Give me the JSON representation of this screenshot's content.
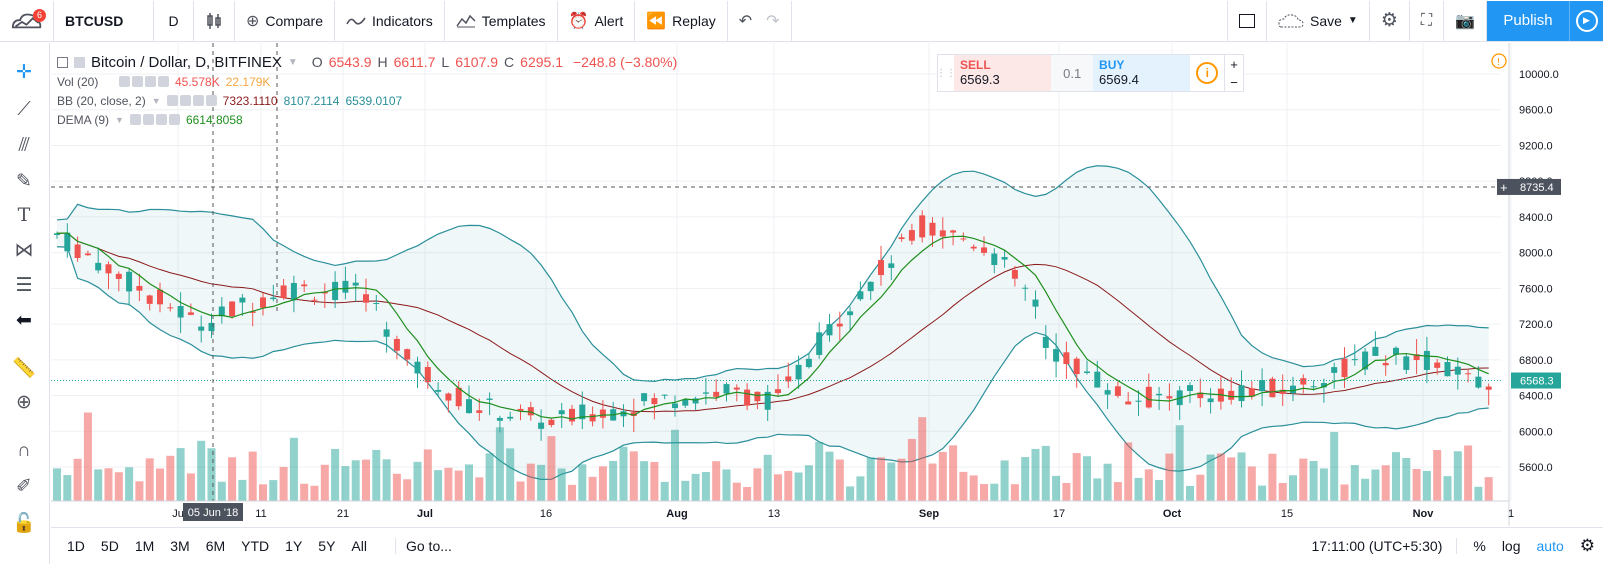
{
  "app": {
    "notification_count": "6"
  },
  "topbar": {
    "symbol": "BTCUSD",
    "interval": "D",
    "compare": "Compare",
    "indicators": "Indicators",
    "templates": "Templates",
    "alert": "Alert",
    "replay": "Replay",
    "save": "Save",
    "publish": "Publish"
  },
  "legend": {
    "title": "Bitcoin / Dollar, D, BITFINEX",
    "o_label": "O",
    "o_value": "6543.9",
    "h_label": "H",
    "h_value": "6611.7",
    "l_label": "L",
    "l_value": "6107.9",
    "c_label": "C",
    "c_value": "6295.1",
    "change": "−248.8 (−3.80%)",
    "vol_label": "Vol (20)",
    "vol_value1": "45.578K",
    "vol_value2": "22.179K",
    "bb_label": "BB (20, close, 2)",
    "bb_value1": "7323.1110",
    "bb_value2": "8107.2114",
    "bb_value3": "6539.0107",
    "dema_label": "DEMA (9)",
    "dema_value": "6614.8058"
  },
  "trade": {
    "sell_label": "SELL",
    "sell_price": "6569.3",
    "qty": "0.1",
    "buy_label": "BUY",
    "buy_price": "6569.4",
    "plus": "+",
    "minus": "−"
  },
  "price_axis": {
    "ticks": [
      "10000.0",
      "9600.0",
      "9200.0",
      "8800.0",
      "8400.0",
      "8000.0",
      "7600.0",
      "7200.0",
      "6800.0",
      "6400.0",
      "6000.0",
      "5600.0"
    ],
    "crosshair_label": "8735.4",
    "last_price_label": "6568.3"
  },
  "time_axis": {
    "labels": [
      "Ju",
      "11",
      "21",
      "Jul",
      "16",
      "Aug",
      "13",
      "Sep",
      "17",
      "Oct",
      "15",
      "Nov",
      "1"
    ],
    "crosshair_label": "05 Jun '18"
  },
  "bottombar": {
    "ranges": [
      "1D",
      "5D",
      "1M",
      "3M",
      "6M",
      "YTD",
      "1Y",
      "5Y",
      "All"
    ],
    "goto": "Go to...",
    "clock": "17:11:00 (UTC+5:30)",
    "percent": "%",
    "log": "log",
    "auto": "auto"
  },
  "colors": {
    "up": "#26a69a",
    "down": "#ef5350",
    "bb_band": "#2a8f9a",
    "bb_basis": "#8b1a1a",
    "dema": "#1e8f1e",
    "accent": "#2196f3"
  }
}
